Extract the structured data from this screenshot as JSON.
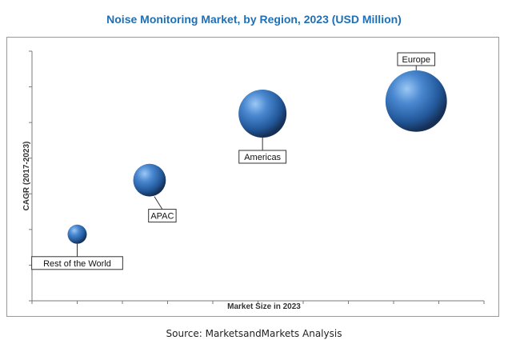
{
  "chart_data": {
    "type": "bubble",
    "title": "Noise Monitoring Market, by Region, 2023 (USD Million)",
    "xlabel": "Market Size in 2023",
    "ylabel": "CAGR (2017-2023)",
    "x_ticks": 10,
    "y_ticks": 7,
    "grid": false,
    "bubble_color": "#3a78c2",
    "points": [
      {
        "label": "Rest of the World",
        "x": 1.0,
        "y": 1.6,
        "size": 1.0
      },
      {
        "label": "APAC",
        "x": 2.6,
        "y": 2.9,
        "size": 1.7
      },
      {
        "label": "Americas",
        "x": 5.1,
        "y": 4.5,
        "size": 2.5
      },
      {
        "label": "Europe",
        "x": 8.5,
        "y": 4.8,
        "size": 3.2
      }
    ]
  },
  "source": "Source: MarketsandMarkets Analysis"
}
